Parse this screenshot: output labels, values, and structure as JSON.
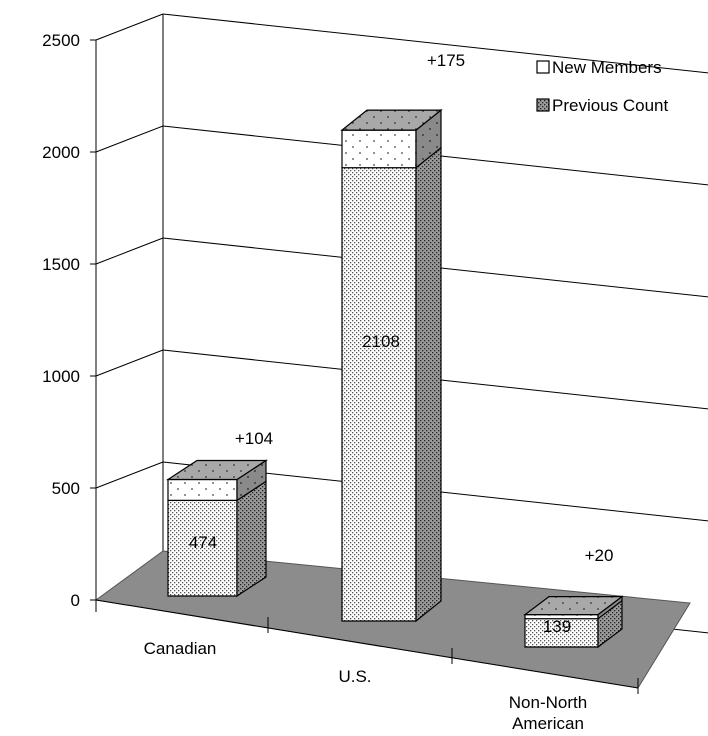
{
  "chart_data": {
    "type": "bar",
    "stacked": true,
    "three_d": true,
    "categories": [
      "Canadian",
      "U.S.",
      "Non-North American"
    ],
    "series": [
      {
        "name": "Previous Count",
        "values": [
          474,
          2108,
          139
        ],
        "labels": [
          "474",
          "2108",
          "139"
        ]
      },
      {
        "name": "New Members",
        "values": [
          104,
          175,
          20
        ],
        "labels": [
          "+104",
          "+175",
          "+20"
        ]
      }
    ],
    "ylim": [
      0,
      2500
    ],
    "yticks": [
      "0",
      "500",
      "1000",
      "1500",
      "2000",
      "2500"
    ],
    "legend": {
      "position": "top-right",
      "entries": [
        "New Members",
        "Previous Count"
      ]
    },
    "grid": true,
    "colors": {
      "floor": "#8c8c8c",
      "edge": "#000000",
      "grid": "#000000"
    }
  }
}
